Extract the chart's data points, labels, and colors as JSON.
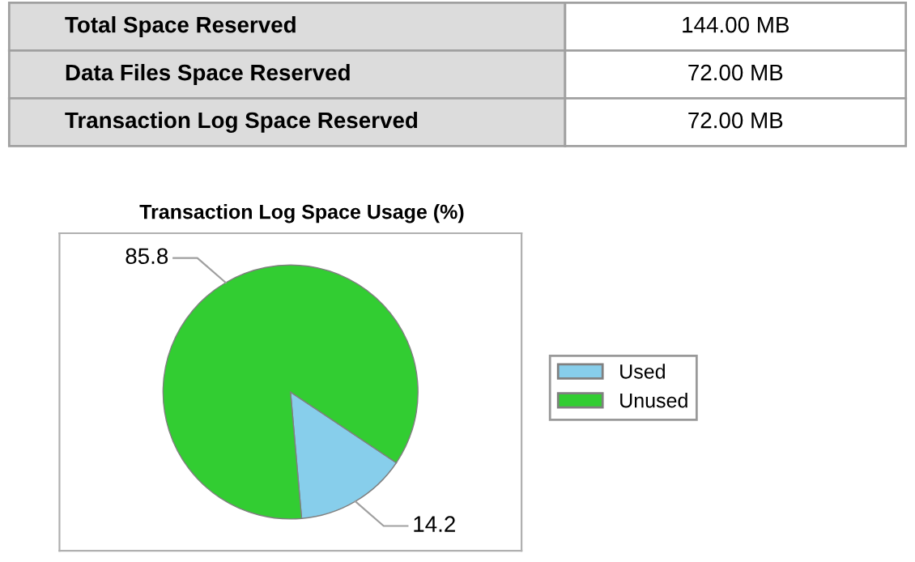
{
  "chart_data": [
    {
      "type": "other",
      "annotations": [
        "Total Space Reserved",
        "144.00 MB",
        "Data Files Space Reserved",
        "72.00 MB",
        "Transaction Log Space Reserved",
        "72.00 MB"
      ]
    },
    {
      "type": "pie",
      "title": "Transaction Log Space Usage (%)",
      "categories": [
        "Used",
        "Unused"
      ],
      "values": [
        14.2,
        85.8
      ],
      "colors": [
        "#87ceeb",
        "#32cd32"
      ],
      "data_labels": true,
      "legend": "right"
    }
  ]
}
